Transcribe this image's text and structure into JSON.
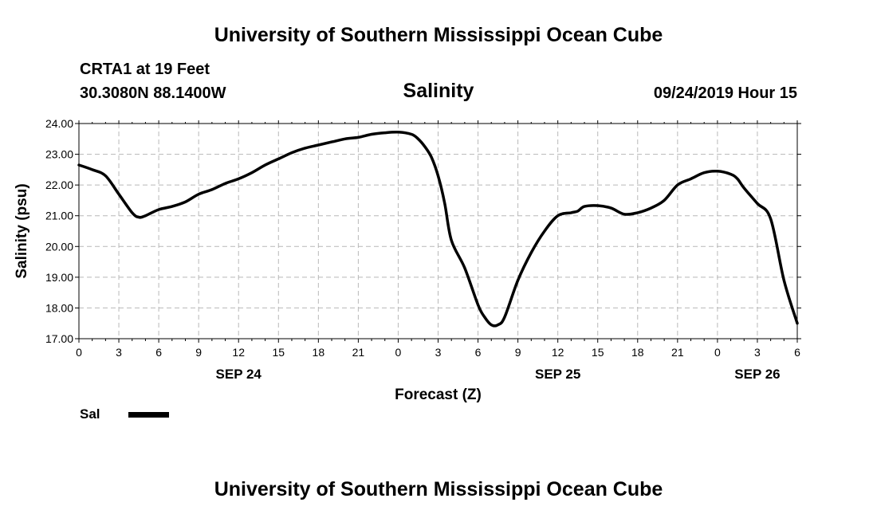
{
  "header": {
    "title": "University of Southern Mississippi Ocean Cube",
    "station": "CRTA1 at 19 Feet",
    "coordinates": "30.3080N 88.1400W",
    "variable": "Salinity",
    "datetime": "09/24/2019 Hour 15"
  },
  "footer": {
    "title": "University of Southern Mississippi Ocean Cube"
  },
  "legend": {
    "label": "Sal"
  },
  "chart_data": {
    "type": "line",
    "title": "Salinity",
    "xlabel": "Forecast (Z)",
    "ylabel": "Salinity (psu)",
    "xlim": [
      0,
      54
    ],
    "ylim": [
      17,
      24
    ],
    "grid": true,
    "x_ticks": [
      0,
      3,
      6,
      9,
      12,
      15,
      18,
      21,
      24,
      27,
      30,
      33,
      36,
      39,
      42,
      45,
      48,
      51,
      54
    ],
    "x_tick_labels": [
      "0",
      "3",
      "6",
      "9",
      "12",
      "15",
      "18",
      "21",
      "0",
      "3",
      "6",
      "9",
      "12",
      "15",
      "18",
      "21",
      "0",
      "3",
      "6"
    ],
    "y_ticks": [
      17,
      18,
      19,
      20,
      21,
      22,
      23,
      24
    ],
    "y_tick_labels": [
      "17.00",
      "18.00",
      "19.00",
      "20.00",
      "21.00",
      "22.00",
      "23.00",
      "24.00"
    ],
    "date_labels": [
      {
        "x": 12,
        "label": "SEP 24"
      },
      {
        "x": 36,
        "label": "SEP 25"
      },
      {
        "x": 51,
        "label": "SEP 26"
      }
    ],
    "series": [
      {
        "name": "Sal",
        "color": "#000000",
        "x": [
          0,
          1,
          2,
          3,
          4,
          4.5,
          5,
          6,
          7,
          8,
          9,
          10,
          11,
          12,
          13,
          14,
          15,
          16,
          17,
          18,
          19,
          20,
          21,
          22,
          23,
          24,
          25,
          25.5,
          26,
          26.5,
          27,
          27.5,
          28,
          29,
          30,
          30.5,
          31,
          31.5,
          32,
          33,
          34,
          35,
          36,
          37,
          37.5,
          38,
          39,
          40,
          41,
          42,
          43,
          44,
          45,
          46,
          47,
          48,
          49,
          49.5,
          50,
          51,
          52,
          53,
          54
        ],
        "values": [
          22.65,
          22.5,
          22.3,
          21.7,
          21.1,
          20.95,
          21.0,
          21.2,
          21.3,
          21.45,
          21.7,
          21.85,
          22.05,
          22.2,
          22.4,
          22.65,
          22.85,
          23.05,
          23.2,
          23.3,
          23.4,
          23.5,
          23.55,
          23.65,
          23.7,
          23.72,
          23.65,
          23.5,
          23.25,
          22.9,
          22.3,
          21.4,
          20.2,
          19.3,
          18.1,
          17.7,
          17.45,
          17.45,
          17.7,
          18.9,
          19.8,
          20.5,
          21.0,
          21.1,
          21.15,
          21.3,
          21.33,
          21.25,
          21.05,
          21.1,
          21.25,
          21.5,
          22.0,
          22.2,
          22.4,
          22.45,
          22.35,
          22.2,
          21.9,
          21.4,
          20.9,
          18.9,
          17.5
        ]
      }
    ]
  }
}
